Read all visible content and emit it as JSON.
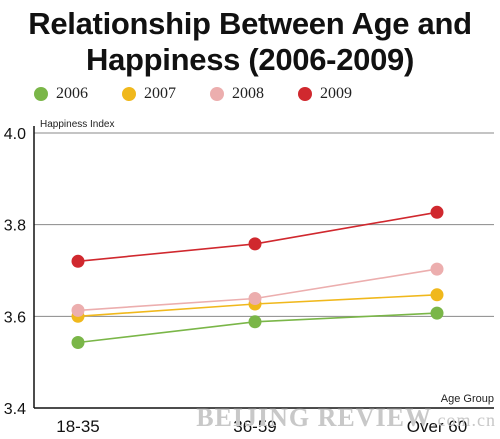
{
  "chart_data": {
    "type": "line",
    "title": "Relationship Between Age and Happiness (2006-2009)",
    "title_lines": [
      "Relationship Between Age and",
      "Happiness (2006-2009)"
    ],
    "ylabel": "Happiness Index",
    "xlabel": "Age Group",
    "categories": [
      "18-35",
      "36-59",
      "Over 60"
    ],
    "ylim": [
      3.4,
      4.0
    ],
    "yticks": [
      "3.4",
      "3.6",
      "3.8",
      "4.0"
    ],
    "grid": "horizontal",
    "legend_position": "top",
    "series": [
      {
        "name": "2006",
        "color": "#7ab648",
        "values": [
          3.543,
          3.588,
          3.607
        ]
      },
      {
        "name": "2007",
        "color": "#f0b81c",
        "values": [
          3.6,
          3.627,
          3.647
        ]
      },
      {
        "name": "2008",
        "color": "#ecaeae",
        "values": [
          3.613,
          3.639,
          3.703
        ]
      },
      {
        "name": "2009",
        "color": "#d0282e",
        "values": [
          3.72,
          3.758,
          3.827
        ]
      }
    ]
  },
  "watermark": {
    "main": "BEIJING REVIEW",
    "suffix": ".com.cn"
  }
}
